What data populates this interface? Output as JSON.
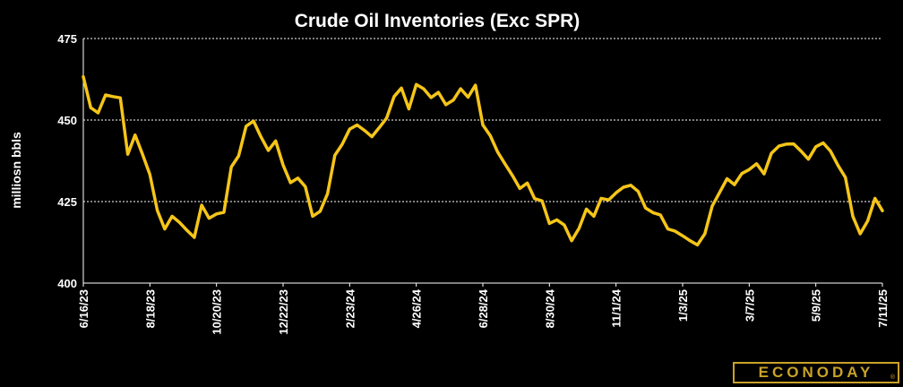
{
  "chart_data": {
    "type": "line",
    "title": "Crude Oil Inventories (Exc SPR)",
    "ylabel": "milliosn bbls",
    "xlabel": "",
    "ylim": [
      400,
      475
    ],
    "yticks": [
      400,
      425,
      450,
      475
    ],
    "grid": "horizontal dashed",
    "xtick_labels": [
      "6/16/23",
      "8/18/23",
      "10/20/23",
      "12/22/23",
      "2/23/24",
      "4/26/24",
      "6/28/24",
      "8/30/24",
      "11/1/24",
      "1/3/25",
      "3/7/25",
      "5/9/25",
      "7/11/25"
    ],
    "series": [
      {
        "color": "#f5c518",
        "values": [
          463.3,
          453.8,
          452.2,
          457.7,
          457.2,
          456.8,
          439.5,
          445.4,
          439.5,
          433.3,
          422.3,
          416.6,
          420.5,
          418.6,
          416.2,
          414.0,
          423.9,
          419.9,
          421.2,
          421.7,
          435.6,
          439.0,
          448.1,
          449.7,
          444.9,
          440.7,
          443.6,
          436.2,
          430.8,
          432.2,
          429.6,
          420.5,
          422.0,
          427.4,
          439.2,
          442.6,
          447.2,
          448.5,
          446.8,
          444.9,
          447.7,
          450.6,
          457.2,
          459.8,
          453.4,
          460.9,
          459.6,
          456.9,
          458.5,
          454.7,
          456.1,
          459.6,
          457.0,
          460.7,
          448.5,
          445.2,
          440.2,
          436.5,
          433.0,
          429.0,
          430.7,
          425.9,
          425.2,
          418.3,
          419.4,
          417.8,
          413.0,
          416.8,
          422.7,
          420.5,
          426.0,
          425.5,
          427.7,
          429.4,
          430.0,
          428.1,
          423.0,
          421.6,
          420.9,
          416.6,
          415.9,
          414.5,
          413.0,
          411.7,
          415.1,
          423.6,
          427.8,
          432.0,
          430.2,
          433.6,
          434.8,
          436.6,
          433.5,
          439.8,
          442.0,
          442.6,
          442.7,
          440.5,
          438.0,
          441.8,
          443.0,
          440.4,
          436.1,
          432.4,
          420.5,
          415.1,
          419.0,
          426.0,
          422.2
        ]
      }
    ]
  },
  "brand": {
    "logo_text": "ECONODAY",
    "logo_mark": "®",
    "accent": "#c9a227"
  }
}
